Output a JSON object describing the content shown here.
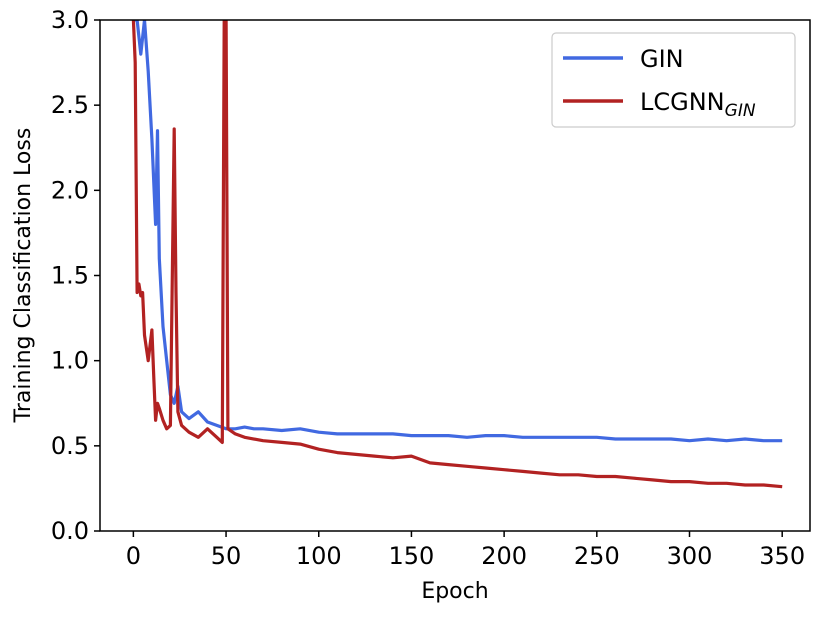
{
  "chart_data": {
    "type": "line",
    "title": "",
    "xlabel": "Epoch",
    "ylabel": "Training Classification Loss",
    "xlim": [
      -18,
      365
    ],
    "ylim": [
      0,
      3.0
    ],
    "xticks": [
      0,
      50,
      100,
      150,
      200,
      250,
      300,
      350
    ],
    "yticks": [
      0.0,
      0.5,
      1.0,
      1.5,
      2.0,
      2.5,
      3.0
    ],
    "xtick_labels": [
      "0",
      "50",
      "100",
      "150",
      "200",
      "250",
      "300",
      "350"
    ],
    "ytick_labels": [
      "0.0",
      "0.5",
      "1.0",
      "1.5",
      "2.0",
      "2.5",
      "3.0"
    ],
    "grid": false,
    "legend": "top-right",
    "series": [
      {
        "name": "GIN",
        "color": "#4169E1",
        "x": [
          0,
          2,
          4,
          6,
          8,
          10,
          12,
          13,
          14,
          16,
          18,
          20,
          22,
          24,
          26,
          28,
          30,
          35,
          40,
          45,
          50,
          55,
          60,
          65,
          70,
          80,
          90,
          100,
          110,
          120,
          130,
          140,
          150,
          160,
          170,
          180,
          190,
          200,
          210,
          220,
          230,
          240,
          250,
          260,
          270,
          280,
          290,
          300,
          310,
          320,
          330,
          340,
          350
        ],
        "values": [
          3.0,
          3.0,
          2.8,
          3.0,
          2.7,
          2.3,
          1.8,
          2.35,
          1.6,
          1.2,
          1.0,
          0.8,
          0.75,
          0.85,
          0.7,
          0.68,
          0.66,
          0.7,
          0.64,
          0.62,
          0.6,
          0.6,
          0.61,
          0.6,
          0.6,
          0.59,
          0.6,
          0.58,
          0.57,
          0.57,
          0.57,
          0.57,
          0.56,
          0.56,
          0.56,
          0.55,
          0.56,
          0.56,
          0.55,
          0.55,
          0.55,
          0.55,
          0.55,
          0.54,
          0.54,
          0.54,
          0.54,
          0.53,
          0.54,
          0.53,
          0.54,
          0.53,
          0.53
        ]
      },
      {
        "name": "LCGNN_GIN",
        "label_main": "LCGNN",
        "label_sub": "GIN",
        "color": "#B22222",
        "x": [
          0,
          1,
          2,
          3,
          4,
          5,
          6,
          8,
          10,
          11,
          12,
          13,
          14,
          16,
          18,
          20,
          22,
          23,
          24,
          26,
          30,
          35,
          40,
          45,
          48,
          49,
          50,
          51,
          55,
          60,
          70,
          80,
          90,
          100,
          110,
          120,
          130,
          140,
          150,
          160,
          170,
          180,
          190,
          200,
          210,
          220,
          230,
          240,
          250,
          260,
          270,
          280,
          290,
          300,
          310,
          320,
          330,
          340,
          350
        ],
        "values": [
          3.0,
          2.75,
          1.4,
          1.45,
          1.38,
          1.4,
          1.15,
          1.0,
          1.18,
          0.9,
          0.65,
          0.75,
          0.72,
          0.65,
          0.6,
          0.62,
          2.36,
          1.4,
          0.7,
          0.62,
          0.58,
          0.55,
          0.6,
          0.55,
          0.52,
          3.0,
          3.0,
          0.6,
          0.57,
          0.55,
          0.53,
          0.52,
          0.51,
          0.48,
          0.46,
          0.45,
          0.44,
          0.43,
          0.44,
          0.4,
          0.39,
          0.38,
          0.37,
          0.36,
          0.35,
          0.34,
          0.33,
          0.33,
          0.32,
          0.32,
          0.31,
          0.3,
          0.29,
          0.29,
          0.28,
          0.28,
          0.27,
          0.27,
          0.26
        ]
      }
    ]
  }
}
